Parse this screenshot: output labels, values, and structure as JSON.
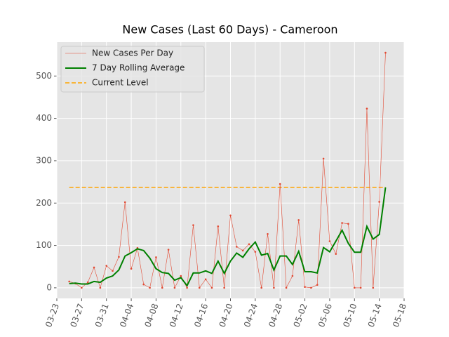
{
  "chart_data": {
    "type": "line",
    "title": "New Cases (Last 60 Days) - Cameroon",
    "x": [
      "03-25",
      "03-26",
      "03-27",
      "03-28",
      "03-29",
      "03-30",
      "03-31",
      "04-01",
      "04-02",
      "04-03",
      "04-04",
      "04-05",
      "04-06",
      "04-07",
      "04-08",
      "04-09",
      "04-10",
      "04-11",
      "04-12",
      "04-13",
      "04-14",
      "04-15",
      "04-16",
      "04-17",
      "04-18",
      "04-19",
      "04-20",
      "04-21",
      "04-22",
      "04-23",
      "04-24",
      "04-25",
      "04-26",
      "04-27",
      "04-28",
      "04-29",
      "04-30",
      "05-01",
      "05-02",
      "05-03",
      "05-04",
      "05-05",
      "05-06",
      "05-07",
      "05-08",
      "05-09",
      "05-10",
      "05-11",
      "05-12",
      "05-13",
      "05-14",
      "05-15"
    ],
    "series": [
      {
        "name": "New Cases Per Day",
        "color": "#e24a33",
        "style": "thin-markers",
        "values": [
          15,
          10,
          0,
          13,
          48,
          0,
          52,
          40,
          73,
          202,
          45,
          94,
          8,
          0,
          72,
          0,
          90,
          0,
          28,
          0,
          148,
          0,
          20,
          0,
          145,
          0,
          171,
          97,
          88,
          103,
          85,
          0,
          127,
          0,
          245,
          0,
          28,
          160,
          2,
          0,
          7,
          305,
          110,
          80,
          153,
          151,
          0,
          0,
          423,
          0,
          203,
          555
        ]
      },
      {
        "name": "7 Day Rolling Average",
        "color": "#008000",
        "style": "thick",
        "values": [
          10,
          11,
          9,
          9,
          15,
          13,
          23,
          28,
          42,
          75,
          83,
          92,
          88,
          70,
          45,
          36,
          34,
          18,
          24,
          5,
          35,
          35,
          40,
          34,
          63,
          34,
          63,
          82,
          72,
          92,
          108,
          77,
          81,
          42,
          75,
          75,
          55,
          86,
          38,
          38,
          35,
          95,
          85,
          110,
          136,
          105,
          84,
          84,
          145,
          115,
          126,
          237
        ]
      }
    ],
    "reference_line": {
      "name": "Current Level",
      "color": "#ffa500",
      "value": 237
    },
    "xlim": [
      "03-23",
      "05-18"
    ],
    "xticks": [
      "03-23",
      "03-27",
      "03-31",
      "04-04",
      "04-08",
      "04-12",
      "04-16",
      "04-20",
      "04-24",
      "04-28",
      "05-02",
      "05-06",
      "05-10",
      "05-14",
      "05-18"
    ],
    "ylim": [
      -25,
      580
    ],
    "yticks": [
      0,
      100,
      200,
      300,
      400,
      500
    ],
    "grid": true,
    "legend": "upper-left"
  }
}
